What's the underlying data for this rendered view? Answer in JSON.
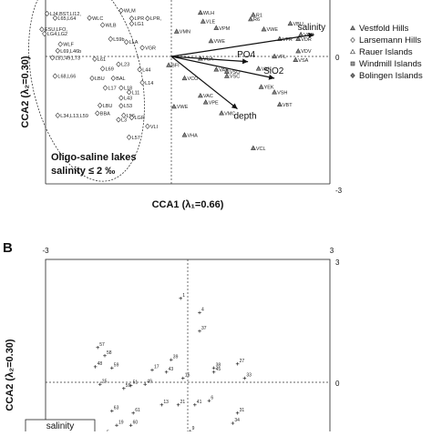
{
  "chart_data": [
    {
      "type": "scatter",
      "panel": "A",
      "xlabel": "CCA1 (λ₁=0.66)",
      "ylabel": "CCA2 (λ₂=0.30)",
      "xlim": [
        -3,
        3
      ],
      "ylim": [
        -3,
        3
      ],
      "tick_labels": {
        "x_right": "3",
        "y_zero": "0",
        "y_bottom": "-3"
      },
      "legend_placement": "right",
      "legend": [
        {
          "name": "Vestfold Hills",
          "marker": "triangle"
        },
        {
          "name": "Larsemann Hills",
          "marker": "diamond"
        },
        {
          "name": "Rauer Islands",
          "marker": "triangle-open"
        },
        {
          "name": "Windmill Islands",
          "marker": "square"
        },
        {
          "name": "Bolingen Islands",
          "marker": "diamond-filled"
        }
      ],
      "annotation": {
        "line1": "Oligo-saline lakes",
        "line2": "salinity ≤ 2 ‰"
      },
      "env_vectors": [
        {
          "name": "salinity",
          "x": 2.7,
          "y": 0.5
        },
        {
          "name": "PO4",
          "x": 1.45,
          "y": -0.12
        },
        {
          "name": "SiO2",
          "x": 1.95,
          "y": -0.5
        },
        {
          "name": "depth",
          "x": 1.25,
          "y": -1.2
        }
      ],
      "sites": [
        {
          "label": "WLM",
          "x": -0.95,
          "y": 1.05
        },
        {
          "label": "LJ4,BST,LI12,",
          "x": -2.35,
          "y": 0.98
        },
        {
          "label": "L65,L64",
          "x": -2.2,
          "y": 0.88
        },
        {
          "label": "WLC",
          "x": -1.55,
          "y": 0.88
        },
        {
          "label": "WLB",
          "x": -1.3,
          "y": 0.72
        },
        {
          "label": "LPR",
          "x": -0.75,
          "y": 0.87
        },
        {
          "label": "LPR,",
          "x": -0.45,
          "y": 0.87
        },
        {
          "label": "LG1",
          "x": -0.75,
          "y": 0.75
        },
        {
          "label": "ESU,LFO,",
          "x": -2.45,
          "y": 0.62
        },
        {
          "label": "LG4,LG2",
          "x": -2.4,
          "y": 0.52
        },
        {
          "label": "L59b",
          "x": -1.15,
          "y": 0.4
        },
        {
          "label": "LLA",
          "x": -0.85,
          "y": 0.33
        },
        {
          "label": "VGR",
          "x": -0.55,
          "y": 0.2
        },
        {
          "label": "WLF",
          "x": -2.1,
          "y": 0.28
        },
        {
          "label": "L69,L46b",
          "x": -2.15,
          "y": 0.13
        },
        {
          "label": "L8,L49,L73",
          "x": -2.25,
          "y": -0.03
        },
        {
          "label": "L61",
          "x": -1.45,
          "y": -0.06
        },
        {
          "label": "L23",
          "x": -1.0,
          "y": -0.18
        },
        {
          "label": "L68,L66",
          "x": -2.2,
          "y": -0.45
        },
        {
          "label": "L69",
          "x": -1.3,
          "y": -0.28
        },
        {
          "label": "L44",
          "x": -0.6,
          "y": -0.3
        },
        {
          "label": "LBU",
          "x": -1.5,
          "y": -0.5
        },
        {
          "label": "BAL",
          "x": -1.1,
          "y": -0.5
        },
        {
          "label": "L17",
          "x": -1.25,
          "y": -0.72
        },
        {
          "label": "L18",
          "x": -0.95,
          "y": -0.72
        },
        {
          "label": "L11",
          "x": -0.8,
          "y": -0.82
        },
        {
          "label": "L14",
          "x": -0.55,
          "y": -0.6
        },
        {
          "label": "L43",
          "x": -0.95,
          "y": -0.95
        },
        {
          "label": "LBU",
          "x": -1.35,
          "y": -1.12
        },
        {
          "label": "L53",
          "x": -0.95,
          "y": -1.13
        },
        {
          "label": "L34,L13,L59",
          "x": -2.15,
          "y": -1.35
        },
        {
          "label": "BBA",
          "x": -1.4,
          "y": -1.3
        },
        {
          "label": "L3",
          "x": -1.0,
          "y": -1.45
        },
        {
          "label": "L56",
          "x": -0.9,
          "y": -1.35
        },
        {
          "label": "LGR",
          "x": -0.75,
          "y": -1.4
        },
        {
          "label": "VLI",
          "x": -0.45,
          "y": -1.6
        },
        {
          "label": "L57",
          "x": -0.8,
          "y": -1.85
        },
        {
          "label": "BFI",
          "x": -0.05,
          "y": -0.2
        },
        {
          "label": "VMN",
          "x": 0.1,
          "y": 0.57
        },
        {
          "label": "WLH",
          "x": 0.55,
          "y": 1.0
        },
        {
          "label": "VLE",
          "x": 0.6,
          "y": 0.8
        },
        {
          "label": "VPM",
          "x": 0.85,
          "y": 0.65
        },
        {
          "label": "VWE",
          "x": 0.75,
          "y": 0.35
        },
        {
          "label": "VCA",
          "x": 0.55,
          "y": -0.05
        },
        {
          "label": "VAB",
          "x": 0.85,
          "y": -0.3
        },
        {
          "label": "VSO",
          "x": 1.05,
          "y": -0.35
        },
        {
          "label": "VSC",
          "x": 1.05,
          "y": -0.45
        },
        {
          "label": "VCO",
          "x": 0.25,
          "y": -0.5
        },
        {
          "label": "VAC",
          "x": 0.55,
          "y": -0.9
        },
        {
          "label": "VPE",
          "x": 0.65,
          "y": -1.05
        },
        {
          "label": "VMC",
          "x": 0.95,
          "y": -1.3
        },
        {
          "label": "VHA",
          "x": 0.25,
          "y": -1.8
        },
        {
          "label": "VCL",
          "x": 1.55,
          "y": -2.1
        },
        {
          "label": "VWE",
          "x": 0.05,
          "y": -1.15
        },
        {
          "label": "YEK",
          "x": 1.7,
          "y": -0.7
        },
        {
          "label": "VBT",
          "x": 2.05,
          "y": -1.1
        },
        {
          "label": "VSH",
          "x": 1.95,
          "y": -0.82
        },
        {
          "label": "VFL",
          "x": 1.95,
          "y": 0.0
        },
        {
          "label": "VSA",
          "x": 2.35,
          "y": -0.08
        },
        {
          "label": "VAN",
          "x": 1.65,
          "y": -0.28
        },
        {
          "label": "VDV",
          "x": 2.4,
          "y": 0.12
        },
        {
          "label": "VCB",
          "x": 2.45,
          "y": 0.5
        },
        {
          "label": "VDR",
          "x": 2.4,
          "y": 0.4
        },
        {
          "label": "VFR",
          "x": 2.05,
          "y": 0.4
        },
        {
          "label": "VBU",
          "x": 2.25,
          "y": 0.75
        },
        {
          "label": "VWE",
          "x": 1.75,
          "y": 0.62
        },
        {
          "label": "R1",
          "x": 1.55,
          "y": 0.95
        },
        {
          "label": "R6",
          "x": 1.5,
          "y": 0.85
        }
      ]
    },
    {
      "type": "scatter",
      "panel": "B",
      "ylabel": "CCA2 (λ₂=0.30)",
      "xlim": [
        -3,
        3
      ],
      "ylim": [
        -3,
        3
      ],
      "tick_labels": {
        "x_left": "-3",
        "x_right": "3",
        "y_top": "3",
        "y_zero": "0"
      },
      "legend_fragment": "salinity",
      "points": [
        {
          "label": "1",
          "x": -0.15,
          "y": 2.05
        },
        {
          "label": "4",
          "x": 0.25,
          "y": 1.7
        },
        {
          "label": "37",
          "x": 0.25,
          "y": 1.25
        },
        {
          "label": "57",
          "x": -1.9,
          "y": 0.85
        },
        {
          "label": "58",
          "x": -1.75,
          "y": 0.65
        },
        {
          "label": "48",
          "x": -1.95,
          "y": 0.38
        },
        {
          "label": "59",
          "x": -1.6,
          "y": 0.35
        },
        {
          "label": "39",
          "x": -0.35,
          "y": 0.55
        },
        {
          "label": "17",
          "x": -0.75,
          "y": 0.3
        },
        {
          "label": "43",
          "x": -0.45,
          "y": 0.25
        },
        {
          "label": "38",
          "x": 0.55,
          "y": 0.35
        },
        {
          "label": "55",
          "x": -1.35,
          "y": -0.15
        },
        {
          "label": "51",
          "x": -1.2,
          "y": -0.08
        },
        {
          "label": "25",
          "x": -1.85,
          "y": -0.05
        },
        {
          "label": "49",
          "x": -0.9,
          "y": -0.05
        },
        {
          "label": "16",
          "x": -0.1,
          "y": 0.1
        },
        {
          "label": "13",
          "x": -0.55,
          "y": -0.55
        },
        {
          "label": "21",
          "x": -0.2,
          "y": -0.55
        },
        {
          "label": "41",
          "x": 0.15,
          "y": -0.55
        },
        {
          "label": "6",
          "x": 0.45,
          "y": -0.45
        },
        {
          "label": "27",
          "x": 1.05,
          "y": 0.45
        },
        {
          "label": "33",
          "x": 1.2,
          "y": 0.1
        },
        {
          "label": "45",
          "x": 0.55,
          "y": 0.25
        },
        {
          "label": "63",
          "x": -1.6,
          "y": -0.7
        },
        {
          "label": "61",
          "x": -1.15,
          "y": -0.75
        },
        {
          "label": "19",
          "x": -1.5,
          "y": -1.05
        },
        {
          "label": "60",
          "x": -1.2,
          "y": -1.05
        },
        {
          "label": "56",
          "x": -1.35,
          "y": -1.5
        },
        {
          "label": "5",
          "x": -1.75,
          "y": -1.3
        },
        {
          "label": "9",
          "x": 0.05,
          "y": -1.2
        },
        {
          "label": "34",
          "x": 0.95,
          "y": -1.0
        },
        {
          "label": "31",
          "x": 1.05,
          "y": -0.75
        },
        {
          "label": "29",
          "x": 0.55,
          "y": -1.5
        },
        {
          "label": "3",
          "x": 0.85,
          "y": -1.35
        }
      ]
    }
  ]
}
